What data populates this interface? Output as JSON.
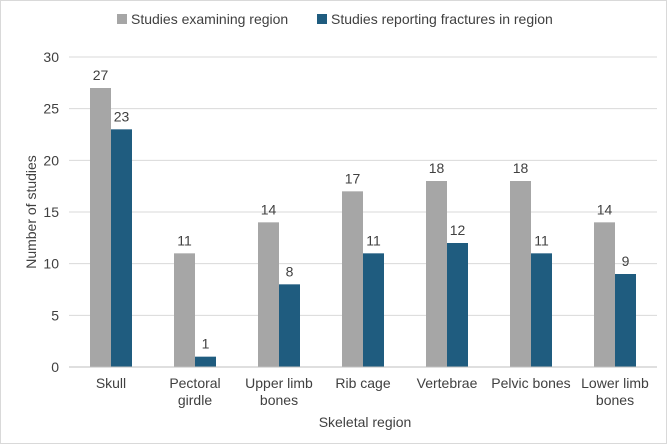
{
  "chart_data": {
    "type": "bar",
    "categories": [
      [
        "Skull"
      ],
      [
        "Pectoral",
        "girdle"
      ],
      [
        "Upper limb",
        "bones"
      ],
      [
        "Rib cage"
      ],
      [
        "Vertebrae"
      ],
      [
        "Pelvic bones"
      ],
      [
        "Lower limb",
        "bones"
      ]
    ],
    "series": [
      {
        "name": "Studies examining region",
        "values": [
          27,
          11,
          14,
          17,
          18,
          18,
          14
        ],
        "color": "#a6a6a6"
      },
      {
        "name": "Studies reporting fractures in region",
        "values": [
          23,
          1,
          8,
          11,
          12,
          11,
          9
        ],
        "color": "#1f5c7f"
      }
    ],
    "xlabel": "Skeletal region",
    "ylabel": "Number of studies",
    "ylim": [
      0,
      30
    ],
    "yticks": [
      0,
      5,
      10,
      15,
      20,
      25,
      30
    ],
    "grid": true,
    "legend_position": "top"
  }
}
